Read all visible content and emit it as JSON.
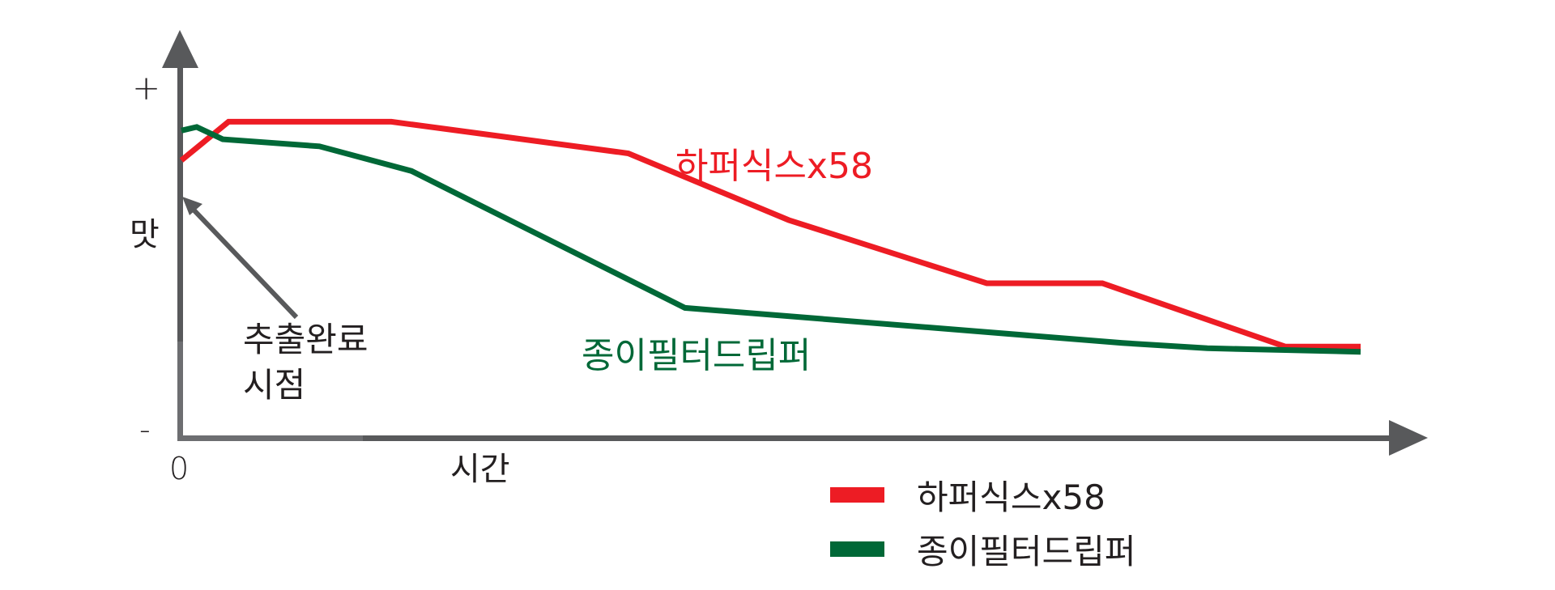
{
  "chart_data": {
    "type": "line",
    "title": "",
    "xlabel": "시간",
    "ylabel": "맛",
    "x_origin_label": "0",
    "y_top_label": "+",
    "y_bottom_label": "-",
    "grid": false,
    "legend_position": "bottom-right",
    "xlim": [
      0,
      100
    ],
    "ylim": [
      0,
      100
    ],
    "series": [
      {
        "name": "하퍼식스x58",
        "color": "#ed1c24",
        "points": [
          [
            0,
            79
          ],
          [
            4,
            90
          ],
          [
            17.8,
            90
          ],
          [
            37.9,
            81
          ],
          [
            51.5,
            62
          ],
          [
            68.3,
            44
          ],
          [
            78.1,
            44
          ],
          [
            93.6,
            26
          ],
          [
            100,
            26
          ]
        ]
      },
      {
        "name": "종이필터드립퍼",
        "color": "#006837",
        "points": [
          [
            0,
            87.5
          ],
          [
            1.3,
            88.5
          ],
          [
            3.5,
            85
          ],
          [
            11.7,
            83
          ],
          [
            19.5,
            76
          ],
          [
            42.7,
            37
          ],
          [
            79.8,
            27
          ],
          [
            87,
            25.5
          ],
          [
            93.6,
            25
          ],
          [
            100,
            24.5
          ]
        ]
      }
    ],
    "annotations": [
      {
        "text_lines": [
          "추출완료",
          "시점"
        ],
        "points_to": [
          0,
          69
        ],
        "meaning": "extraction complete"
      }
    ],
    "inline_labels": [
      {
        "series": 0,
        "text": "하퍼식스x58"
      },
      {
        "series": 1,
        "text": "종이필터드립퍼"
      }
    ]
  },
  "axes": {
    "x_title": "시간",
    "y_title": "맛",
    "plus": "+",
    "minus": "-",
    "zero": "0"
  },
  "annotation": {
    "line1": "추출완료",
    "line2": "시점"
  },
  "labels": {
    "red": "하퍼식스x58",
    "green": "종이필터드립퍼"
  },
  "legend": [
    {
      "label": "하퍼식스x58",
      "color": "#ed1c24"
    },
    {
      "label": "종이필터드립퍼",
      "color": "#006837"
    }
  ],
  "colors": {
    "axis_dark": "#58595b",
    "axis_light": "#6d6e71",
    "red": "#ed1c24",
    "green": "#006837"
  }
}
